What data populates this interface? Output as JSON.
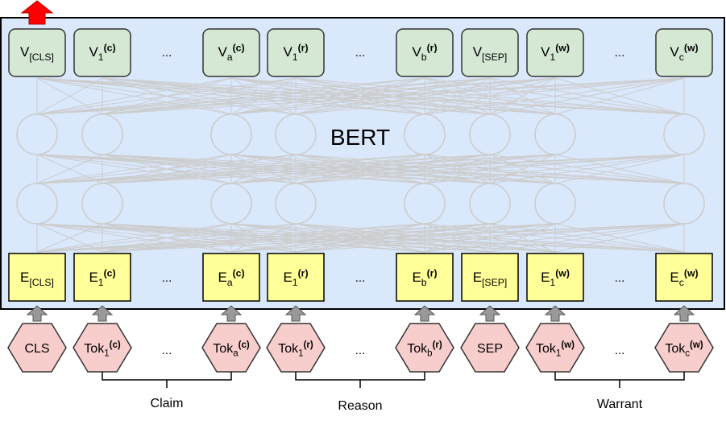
{
  "model_label": "BERT",
  "ellipsis": "...",
  "colors": {
    "bert_bg": "#dae8fc",
    "bert_border": "#000000",
    "output_fill": "#d5e8d4",
    "output_border": "#333333",
    "embedding_fill": "#ffff99",
    "embedding_border": "#000000",
    "token_fill": "#f8cecc",
    "token_border": "#333333",
    "connection": "#cccccc",
    "up_arrow": "#999999",
    "top_arrow": "#ff0000"
  },
  "outputs": [
    {
      "base": "V",
      "sub": "[CLS]",
      "sup": ""
    },
    {
      "base": "V",
      "sub": "1",
      "sup": "(c)"
    },
    {
      "ellipsis": true
    },
    {
      "base": "V",
      "sub": "a",
      "sup": "(c)"
    },
    {
      "base": "V",
      "sub": "1",
      "sup": "(r)"
    },
    {
      "ellipsis": true
    },
    {
      "base": "V",
      "sub": "b",
      "sup": "(r)"
    },
    {
      "base": "V",
      "sub": "[SEP]",
      "sup": ""
    },
    {
      "base": "V",
      "sub": "1",
      "sup": "(w)"
    },
    {
      "ellipsis": true
    },
    {
      "base": "V",
      "sub": "c",
      "sup": "(w)"
    }
  ],
  "embeddings": [
    {
      "base": "E",
      "sub": "[CLS]",
      "sup": ""
    },
    {
      "base": "E",
      "sub": "1",
      "sup": "(c)"
    },
    {
      "ellipsis": true
    },
    {
      "base": "E",
      "sub": "a",
      "sup": "(c)"
    },
    {
      "base": "E",
      "sub": "1",
      "sup": "(r)"
    },
    {
      "ellipsis": true
    },
    {
      "base": "E",
      "sub": "b",
      "sup": "(r)"
    },
    {
      "base": "E",
      "sub": "[SEP]",
      "sup": ""
    },
    {
      "base": "E",
      "sub": "1",
      "sup": "(w)"
    },
    {
      "ellipsis": true
    },
    {
      "base": "E",
      "sub": "c",
      "sup": "(w)"
    }
  ],
  "tokens": [
    {
      "base": "CLS",
      "sub": "",
      "sup": ""
    },
    {
      "base": "Tok",
      "sub": "1",
      "sup": "(c)"
    },
    {
      "ellipsis": true
    },
    {
      "base": "Tok",
      "sub": "a",
      "sup": "(c)"
    },
    {
      "base": "Tok",
      "sub": "1",
      "sup": "(r)"
    },
    {
      "ellipsis": true
    },
    {
      "base": "Tok",
      "sub": "b",
      "sup": "(r)"
    },
    {
      "base": "SEP",
      "sub": "",
      "sup": ""
    },
    {
      "base": "Tok",
      "sub": "1",
      "sup": "(w)"
    },
    {
      "ellipsis": true
    },
    {
      "base": "Tok",
      "sub": "c",
      "sup": "(w)"
    }
  ],
  "segments": [
    {
      "label": "Claim"
    },
    {
      "label": "Reason"
    },
    {
      "label": "Warrant"
    }
  ]
}
